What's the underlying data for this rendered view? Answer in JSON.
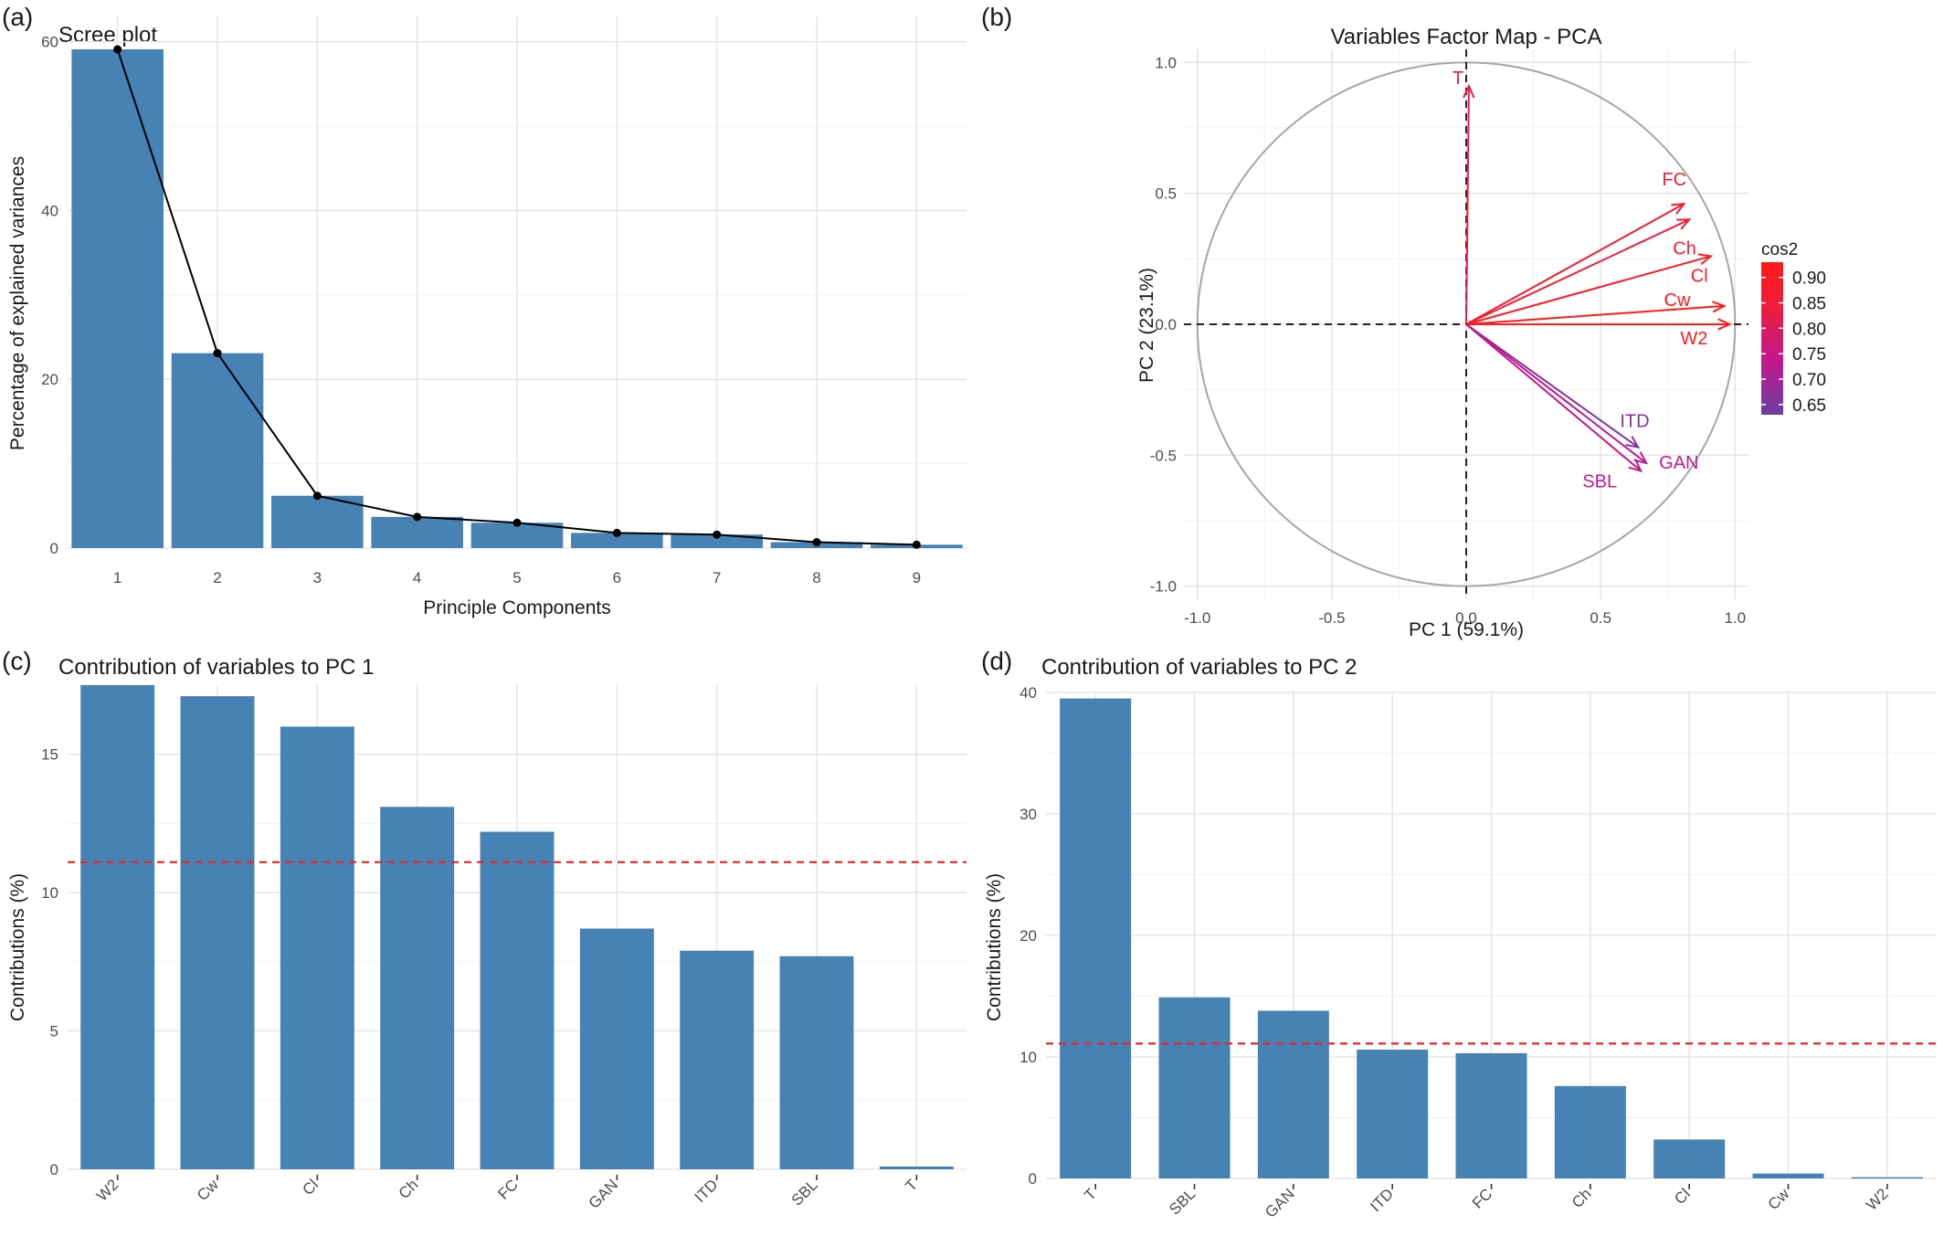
{
  "chart_data": [
    {
      "id": "a",
      "panel_label": "(a)",
      "type": "bar",
      "title": "Scree plot",
      "xlabel": "Principle Components",
      "ylabel": "Percentage of explained variances",
      "categories": [
        "1",
        "2",
        "3",
        "4",
        "5",
        "6",
        "7",
        "8",
        "9"
      ],
      "values": [
        59.1,
        23.1,
        6.2,
        3.7,
        3.0,
        1.8,
        1.6,
        0.7,
        0.4
      ],
      "line_overlay": true,
      "ylim": [
        0,
        63
      ],
      "yticks": [
        0,
        20,
        40,
        60
      ],
      "grid": true,
      "color": "#4682b4"
    },
    {
      "id": "b",
      "panel_label": "(b)",
      "type": "scatter",
      "subtype": "pca-variables-correlation-circle",
      "title": "Variables Factor Map - PCA",
      "xlabel": "PC 1 (59.1%)",
      "ylabel": "PC 2 (23.1%)",
      "xlim": [
        -1.05,
        1.05
      ],
      "ylim": [
        -1.05,
        1.05
      ],
      "xticks": [
        -1.0,
        -0.5,
        0.0,
        0.5,
        1.0
      ],
      "yticks": [
        -1.0,
        -0.5,
        0.0,
        0.5,
        1.0
      ],
      "xtick_labels": [
        "-1.0",
        "-0.5",
        "0.0",
        "0.5",
        "1.0"
      ],
      "ytick_labels": [
        "-1.0",
        "-0.5",
        "0.0",
        "0.5",
        "1.0"
      ],
      "variables": [
        {
          "name": "T",
          "x": 0.01,
          "y": 0.91,
          "cos2": 0.83
        },
        {
          "name": "FC",
          "x": 0.81,
          "y": 0.46,
          "cos2": 0.87
        },
        {
          "name": "Ch",
          "x": 0.83,
          "y": 0.4,
          "cos2": 0.85
        },
        {
          "name": "Cl",
          "x": 0.91,
          "y": 0.26,
          "cos2": 0.9
        },
        {
          "name": "Cw",
          "x": 0.96,
          "y": 0.07,
          "cos2": 0.93
        },
        {
          "name": "W2",
          "x": 0.98,
          "y": 0.0,
          "cos2": 0.95
        },
        {
          "name": "ITD",
          "x": 0.64,
          "y": -0.47,
          "cos2": 0.66
        },
        {
          "name": "GAN",
          "x": 0.67,
          "y": -0.53,
          "cos2": 0.73
        },
        {
          "name": "SBL",
          "x": 0.65,
          "y": -0.56,
          "cos2": 0.74
        }
      ],
      "legend": {
        "title": "cos2",
        "position": "right",
        "ticks": [
          "0.90",
          "0.85",
          "0.80",
          "0.75",
          "0.70",
          "0.65"
        ],
        "tick_values": [
          0.9,
          0.85,
          0.8,
          0.75,
          0.7,
          0.65
        ],
        "range": [
          0.63,
          0.93
        ],
        "colors": [
          "#6b3fa0",
          "#c2188f",
          "#ee1c3c",
          "#ff1a1a"
        ]
      }
    },
    {
      "id": "c",
      "panel_label": "(c)",
      "type": "bar",
      "title": "Contribution of variables to PC 1",
      "xlabel": "",
      "ylabel": "Contributions (%)",
      "categories": [
        "W2",
        "Cw",
        "Cl",
        "Ch",
        "FC",
        "GAN",
        "ITD",
        "SBL",
        "T"
      ],
      "values": [
        17.5,
        17.1,
        16.0,
        13.1,
        12.2,
        8.7,
        7.9,
        7.7,
        0.1
      ],
      "reference_line": 11.1,
      "ylim": [
        0,
        17.5
      ],
      "yticks": [
        0,
        5,
        10,
        15
      ],
      "grid": true,
      "color": "#4682b4"
    },
    {
      "id": "d",
      "panel_label": "(d)",
      "type": "bar",
      "title": "Contribution of variables to PC 2",
      "xlabel": "",
      "ylabel": "Contributions (%)",
      "categories": [
        "T",
        "SBL",
        "GAN",
        "ITD",
        "FC",
        "Ch",
        "Cl",
        "Cw",
        "W2"
      ],
      "values": [
        39.5,
        14.9,
        13.8,
        10.6,
        10.3,
        7.6,
        3.2,
        0.4,
        0.1
      ],
      "reference_line": 11.1,
      "ylim": [
        0,
        40
      ],
      "yticks": [
        0,
        10,
        20,
        30,
        40
      ],
      "grid": true,
      "color": "#4682b4"
    }
  ]
}
